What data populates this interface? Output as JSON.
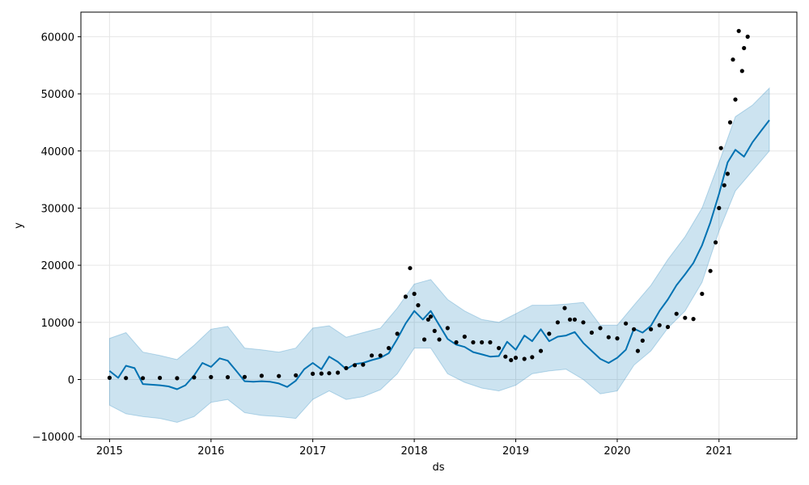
{
  "chart_data": {
    "type": "line",
    "title": "",
    "xlabel": "ds",
    "ylabel": "y",
    "x_ticks": [
      "2015",
      "2016",
      "2017",
      "2018",
      "2019",
      "2020",
      "2021"
    ],
    "y_ticks": [
      "−10000",
      "0",
      "10000",
      "20000",
      "30000",
      "40000",
      "50000",
      "60000"
    ],
    "xlim": [
      "2014-09-20",
      "2021-10-08"
    ],
    "ylim": [
      -10400,
      64300
    ],
    "grid": true,
    "colors": {
      "forecast_line": "#0072b2",
      "uncertainty_band": "#0072b2",
      "observed_points": "#000000",
      "grid": "#e6e6e6"
    },
    "series": [
      {
        "kind": "forecast",
        "points": [
          [
            "2015-01-01",
            1500
          ],
          [
            "2015-02-01",
            300
          ],
          [
            "2015-03-01",
            2400
          ],
          [
            "2015-04-01",
            2000
          ],
          [
            "2015-05-01",
            -800
          ],
          [
            "2015-06-01",
            -900
          ],
          [
            "2015-07-01",
            -1000
          ],
          [
            "2015-08-01",
            -1200
          ],
          [
            "2015-09-01",
            -1700
          ],
          [
            "2015-10-01",
            -1000
          ],
          [
            "2015-11-01",
            700
          ],
          [
            "2015-12-01",
            2900
          ],
          [
            "2016-01-01",
            2200
          ],
          [
            "2016-02-01",
            3700
          ],
          [
            "2016-03-01",
            3300
          ],
          [
            "2016-04-01",
            1500
          ],
          [
            "2016-05-01",
            -300
          ],
          [
            "2016-06-01",
            -400
          ],
          [
            "2016-07-01",
            -300
          ],
          [
            "2016-08-01",
            -400
          ],
          [
            "2016-09-01",
            -700
          ],
          [
            "2016-10-01",
            -1300
          ],
          [
            "2016-11-01",
            -200
          ],
          [
            "2016-12-01",
            1800
          ],
          [
            "2017-01-01",
            2900
          ],
          [
            "2017-02-01",
            1800
          ],
          [
            "2017-03-01",
            4000
          ],
          [
            "2017-04-01",
            3100
          ],
          [
            "2017-05-01",
            1800
          ],
          [
            "2017-06-01",
            2700
          ],
          [
            "2017-07-01",
            2900
          ],
          [
            "2017-08-01",
            3400
          ],
          [
            "2017-09-01",
            3800
          ],
          [
            "2017-10-01",
            4600
          ],
          [
            "2017-11-01",
            7100
          ],
          [
            "2017-12-01",
            9800
          ],
          [
            "2018-01-01",
            12000
          ],
          [
            "2018-02-01",
            10500
          ],
          [
            "2018-03-01",
            12000
          ],
          [
            "2018-04-01",
            9500
          ],
          [
            "2018-05-01",
            7100
          ],
          [
            "2018-06-01",
            6100
          ],
          [
            "2018-07-01",
            5700
          ],
          [
            "2018-08-01",
            4800
          ],
          [
            "2018-09-01",
            4400
          ],
          [
            "2018-10-01",
            4000
          ],
          [
            "2018-11-01",
            4100
          ],
          [
            "2018-12-01",
            6600
          ],
          [
            "2019-01-01",
            5200
          ],
          [
            "2019-02-01",
            7700
          ],
          [
            "2019-03-01",
            6700
          ],
          [
            "2019-04-01",
            8800
          ],
          [
            "2019-05-01",
            6700
          ],
          [
            "2019-06-01",
            7500
          ],
          [
            "2019-07-01",
            7700
          ],
          [
            "2019-08-01",
            8300
          ],
          [
            "2019-09-01",
            6400
          ],
          [
            "2019-10-01",
            5000
          ],
          [
            "2019-11-01",
            3600
          ],
          [
            "2019-12-01",
            2900
          ],
          [
            "2020-01-01",
            3800
          ],
          [
            "2020-02-01",
            5200
          ],
          [
            "2020-03-01",
            8900
          ],
          [
            "2020-04-01",
            8200
          ],
          [
            "2020-05-01",
            9400
          ],
          [
            "2020-06-01",
            12000
          ],
          [
            "2020-07-01",
            14000
          ],
          [
            "2020-08-01",
            16500
          ],
          [
            "2020-09-01",
            18400
          ],
          [
            "2020-10-01",
            20400
          ],
          [
            "2020-11-01",
            23500
          ],
          [
            "2020-12-01",
            27500
          ],
          [
            "2021-01-01",
            32500
          ],
          [
            "2021-02-01",
            38000
          ],
          [
            "2021-03-01",
            40200
          ],
          [
            "2021-04-01",
            39000
          ],
          [
            "2021-05-01",
            41500
          ],
          [
            "2021-06-01",
            43500
          ],
          [
            "2021-07-01",
            45400
          ]
        ]
      },
      {
        "kind": "uncertainty_upper",
        "points": [
          [
            "2015-01-01",
            7200
          ],
          [
            "2015-03-01",
            8200
          ],
          [
            "2015-05-01",
            4800
          ],
          [
            "2015-07-01",
            4200
          ],
          [
            "2015-09-01",
            3500
          ],
          [
            "2015-11-01",
            6000
          ],
          [
            "2016-01-01",
            8800
          ],
          [
            "2016-03-01",
            9300
          ],
          [
            "2016-05-01",
            5500
          ],
          [
            "2016-07-01",
            5200
          ],
          [
            "2016-09-01",
            4800
          ],
          [
            "2016-11-01",
            5500
          ],
          [
            "2017-01-01",
            9000
          ],
          [
            "2017-03-01",
            9400
          ],
          [
            "2017-05-01",
            7400
          ],
          [
            "2017-07-01",
            8200
          ],
          [
            "2017-09-01",
            9000
          ],
          [
            "2017-11-01",
            12500
          ],
          [
            "2018-01-01",
            16700
          ],
          [
            "2018-03-01",
            17500
          ],
          [
            "2018-05-01",
            14000
          ],
          [
            "2018-07-01",
            12000
          ],
          [
            "2018-09-01",
            10500
          ],
          [
            "2018-11-01",
            10000
          ],
          [
            "2019-01-01",
            11500
          ],
          [
            "2019-03-01",
            13000
          ],
          [
            "2019-05-01",
            13000
          ],
          [
            "2019-07-01",
            13200
          ],
          [
            "2019-09-01",
            13500
          ],
          [
            "2019-11-01",
            9500
          ],
          [
            "2020-01-01",
            9500
          ],
          [
            "2020-03-01",
            13000
          ],
          [
            "2020-05-01",
            16500
          ],
          [
            "2020-07-01",
            21000
          ],
          [
            "2020-09-01",
            25000
          ],
          [
            "2020-11-01",
            30000
          ],
          [
            "2021-01-01",
            38000
          ],
          [
            "2021-03-01",
            46000
          ],
          [
            "2021-05-01",
            48000
          ],
          [
            "2021-07-01",
            51000
          ]
        ]
      },
      {
        "kind": "uncertainty_lower",
        "points": [
          [
            "2015-01-01",
            -4500
          ],
          [
            "2015-03-01",
            -6000
          ],
          [
            "2015-05-01",
            -6500
          ],
          [
            "2015-07-01",
            -6800
          ],
          [
            "2015-09-01",
            -7500
          ],
          [
            "2015-11-01",
            -6500
          ],
          [
            "2016-01-01",
            -4000
          ],
          [
            "2016-03-01",
            -3500
          ],
          [
            "2016-05-01",
            -5800
          ],
          [
            "2016-07-01",
            -6300
          ],
          [
            "2016-09-01",
            -6500
          ],
          [
            "2016-11-01",
            -6800
          ],
          [
            "2017-01-01",
            -3500
          ],
          [
            "2017-03-01",
            -2000
          ],
          [
            "2017-05-01",
            -3500
          ],
          [
            "2017-07-01",
            -3000
          ],
          [
            "2017-09-01",
            -1800
          ],
          [
            "2017-11-01",
            1000
          ],
          [
            "2018-01-01",
            5500
          ],
          [
            "2018-03-01",
            5500
          ],
          [
            "2018-05-01",
            1000
          ],
          [
            "2018-07-01",
            -500
          ],
          [
            "2018-09-01",
            -1500
          ],
          [
            "2018-11-01",
            -2000
          ],
          [
            "2019-01-01",
            -1000
          ],
          [
            "2019-03-01",
            1000
          ],
          [
            "2019-05-01",
            1500
          ],
          [
            "2019-07-01",
            1800
          ],
          [
            "2019-09-01",
            0
          ],
          [
            "2019-11-01",
            -2500
          ],
          [
            "2020-01-01",
            -2000
          ],
          [
            "2020-03-01",
            2500
          ],
          [
            "2020-05-01",
            5000
          ],
          [
            "2020-07-01",
            9000
          ],
          [
            "2020-09-01",
            12000
          ],
          [
            "2020-11-01",
            17000
          ],
          [
            "2021-01-01",
            26000
          ],
          [
            "2021-03-01",
            33000
          ],
          [
            "2021-05-01",
            36500
          ],
          [
            "2021-07-01",
            40000
          ]
        ]
      },
      {
        "kind": "observed",
        "points": [
          [
            "2015-01-01",
            300
          ],
          [
            "2015-03-01",
            260
          ],
          [
            "2015-05-01",
            240
          ],
          [
            "2015-07-01",
            280
          ],
          [
            "2015-09-01",
            230
          ],
          [
            "2015-11-01",
            360
          ],
          [
            "2016-01-01",
            430
          ],
          [
            "2016-03-01",
            415
          ],
          [
            "2016-05-01",
            450
          ],
          [
            "2016-07-01",
            650
          ],
          [
            "2016-09-01",
            600
          ],
          [
            "2016-11-01",
            730
          ],
          [
            "2017-01-01",
            1000
          ],
          [
            "2017-02-01",
            1050
          ],
          [
            "2017-03-01",
            1100
          ],
          [
            "2017-04-01",
            1200
          ],
          [
            "2017-05-01",
            2000
          ],
          [
            "2017-06-01",
            2500
          ],
          [
            "2017-07-01",
            2600
          ],
          [
            "2017-08-01",
            4200
          ],
          [
            "2017-09-01",
            4200
          ],
          [
            "2017-10-01",
            5500
          ],
          [
            "2017-11-01",
            8000
          ],
          [
            "2017-12-01",
            14500
          ],
          [
            "2017-12-17",
            19500
          ],
          [
            "2018-01-01",
            15000
          ],
          [
            "2018-01-15",
            13000
          ],
          [
            "2018-02-06",
            7000
          ],
          [
            "2018-02-20",
            10500
          ],
          [
            "2018-03-01",
            11000
          ],
          [
            "2018-03-15",
            8500
          ],
          [
            "2018-04-01",
            7000
          ],
          [
            "2018-05-01",
            9000
          ],
          [
            "2018-06-01",
            6500
          ],
          [
            "2018-07-01",
            7500
          ],
          [
            "2018-08-01",
            6500
          ],
          [
            "2018-09-01",
            6500
          ],
          [
            "2018-10-01",
            6500
          ],
          [
            "2018-11-01",
            5500
          ],
          [
            "2018-11-25",
            4000
          ],
          [
            "2018-12-15",
            3400
          ],
          [
            "2019-01-01",
            3800
          ],
          [
            "2019-02-01",
            3600
          ],
          [
            "2019-03-01",
            3900
          ],
          [
            "2019-04-01",
            5000
          ],
          [
            "2019-05-01",
            8000
          ],
          [
            "2019-06-01",
            10000
          ],
          [
            "2019-06-26",
            12500
          ],
          [
            "2019-07-15",
            10500
          ],
          [
            "2019-08-01",
            10500
          ],
          [
            "2019-09-01",
            10000
          ],
          [
            "2019-10-01",
            8200
          ],
          [
            "2019-11-01",
            9000
          ],
          [
            "2019-12-01",
            7400
          ],
          [
            "2020-01-01",
            7200
          ],
          [
            "2020-02-01",
            9800
          ],
          [
            "2020-03-01",
            8800
          ],
          [
            "2020-03-15",
            5000
          ],
          [
            "2020-04-01",
            6800
          ],
          [
            "2020-05-01",
            8800
          ],
          [
            "2020-06-01",
            9500
          ],
          [
            "2020-07-01",
            9200
          ],
          [
            "2020-08-01",
            11500
          ],
          [
            "2020-09-01",
            10800
          ],
          [
            "2020-10-01",
            10600
          ],
          [
            "2020-11-01",
            15000
          ],
          [
            "2020-12-01",
            19000
          ],
          [
            "2020-12-20",
            24000
          ],
          [
            "2021-01-01",
            30000
          ],
          [
            "2021-01-08",
            40500
          ],
          [
            "2021-01-20",
            34000
          ],
          [
            "2021-02-01",
            36000
          ],
          [
            "2021-02-10",
            45000
          ],
          [
            "2021-02-20",
            56000
          ],
          [
            "2021-03-01",
            49000
          ],
          [
            "2021-03-13",
            61000
          ],
          [
            "2021-03-25",
            54000
          ],
          [
            "2021-04-01",
            58000
          ],
          [
            "2021-04-14",
            60000
          ]
        ]
      }
    ]
  }
}
